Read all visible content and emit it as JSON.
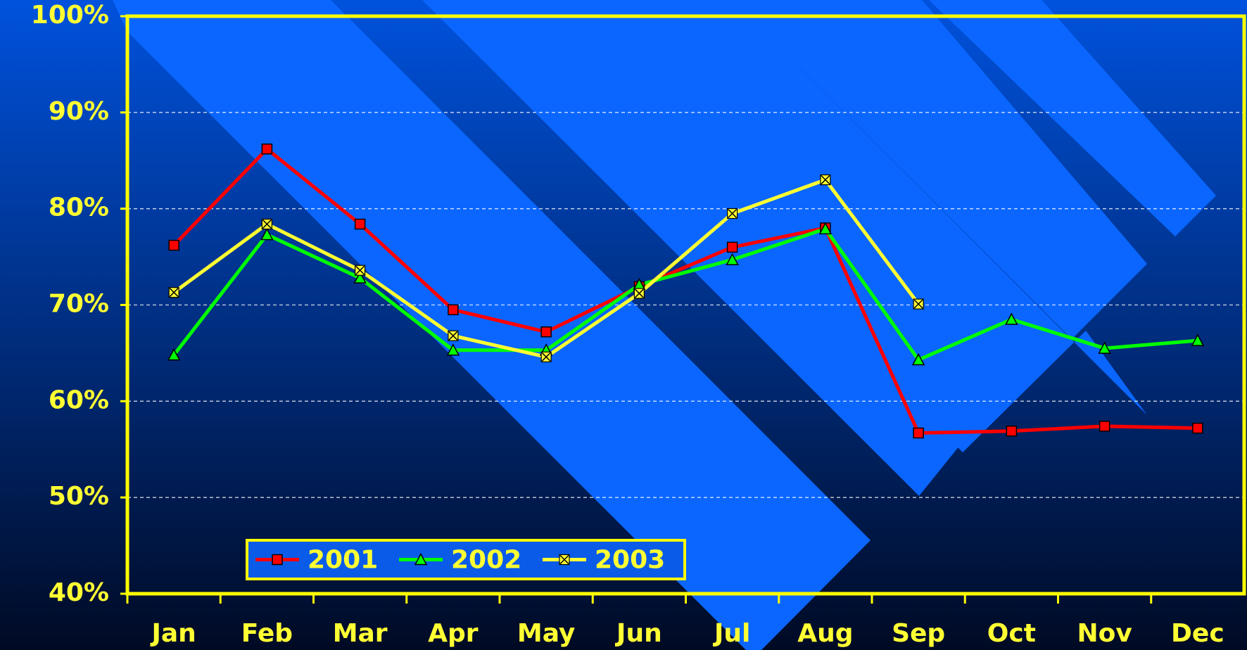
{
  "chart_data": {
    "type": "line",
    "categories": [
      "Jan",
      "Feb",
      "Mar",
      "Apr",
      "May",
      "Jun",
      "Jul",
      "Aug",
      "Sep",
      "Oct",
      "Nov",
      "Dec"
    ],
    "series": [
      {
        "name": "2001",
        "color": "#ff0000",
        "marker": "square",
        "values": [
          76.2,
          86.2,
          78.4,
          69.5,
          67.2,
          71.9,
          76.0,
          78.0,
          56.7,
          56.9,
          57.4,
          57.2
        ]
      },
      {
        "name": "2002",
        "color": "#00ff00",
        "marker": "triangle",
        "values": [
          64.8,
          77.3,
          72.8,
          65.3,
          65.3,
          72.1,
          74.7,
          77.9,
          64.3,
          68.5,
          65.5,
          66.3
        ]
      },
      {
        "name": "2003",
        "color": "#ffff33",
        "marker": "x",
        "values": [
          71.3,
          78.4,
          73.6,
          66.8,
          64.6,
          71.2,
          79.5,
          83.0,
          70.1,
          null,
          null,
          null
        ]
      }
    ],
    "ylim": [
      40,
      100
    ],
    "yticks": [
      {
        "value": 40,
        "label": "40%"
      },
      {
        "value": 50,
        "label": "50%"
      },
      {
        "value": 60,
        "label": "60%"
      },
      {
        "value": 70,
        "label": "70%"
      },
      {
        "value": 80,
        "label": "80%"
      },
      {
        "value": 90,
        "label": "90%"
      },
      {
        "value": 100,
        "label": "100%"
      }
    ],
    "grid": true,
    "legend": "lower left"
  }
}
